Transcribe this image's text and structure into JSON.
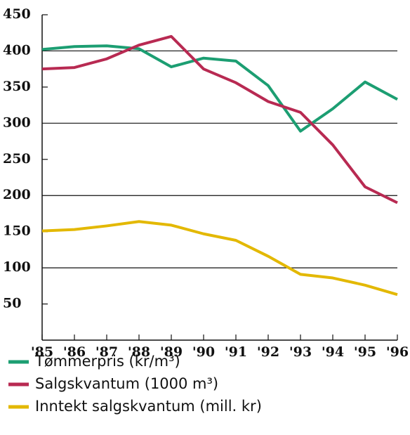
{
  "chart_data": {
    "type": "line",
    "categories": [
      "'85",
      "'86",
      "'87",
      "'88",
      "'89",
      "'90",
      "'91",
      "'92",
      "'93",
      "'94",
      "'95",
      "'96"
    ],
    "series": [
      {
        "name": "Tømmerpris (kr/m³)",
        "color": "#1c9e72",
        "values": [
          402,
          406,
          407,
          403,
          378,
          390,
          386,
          352,
          289,
          320,
          357,
          333
        ]
      },
      {
        "name": "Salgskvantum (1000 m³)",
        "color": "#b82a52",
        "values": [
          375,
          377,
          389,
          408,
          420,
          375,
          356,
          330,
          315,
          270,
          212,
          190
        ]
      },
      {
        "name": "Inntekt salgskvantum (mill. kr)",
        "color": "#e3b800",
        "values": [
          151,
          153,
          158,
          164,
          159,
          147,
          138,
          116,
          91,
          86,
          76,
          63
        ]
      }
    ],
    "ylim": [
      0,
      450
    ],
    "yticks": [
      50,
      100,
      150,
      200,
      250,
      300,
      350,
      400,
      450
    ],
    "grid": true
  }
}
